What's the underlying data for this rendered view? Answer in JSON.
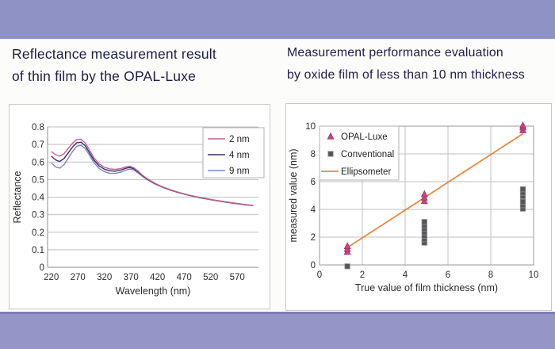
{
  "page": {
    "band_color": "#8f92c5",
    "band_bottom_color": "#9396c7",
    "band_edge_color": "#7d80b4",
    "title_color": "#1c1d45"
  },
  "left_section": {
    "title_line1": "Reflectance measurement result",
    "title_line2": "of thin film by the OPAL-Luxe"
  },
  "right_section": {
    "title_line1": "Measurement performance evaluation",
    "title_line2": "by oxide film of less than 10 nm thickness"
  },
  "chart_data": [
    {
      "type": "line",
      "title": "",
      "xlabel": "Wavelength (nm)",
      "ylabel": "Reflectance",
      "xlim": [
        213,
        610
      ],
      "ylim": [
        0,
        0.8
      ],
      "xticks": [
        220,
        270,
        320,
        370,
        420,
        470,
        520,
        570
      ],
      "yticks": [
        0,
        0.1,
        0.2,
        0.3,
        0.4,
        0.5,
        0.6,
        0.7,
        0.8
      ],
      "grid": "horizontal",
      "gridline_color": "#bfbfbf",
      "axis_color": "#8c8c8c",
      "tick_text_color": "#2b2b2b",
      "legend_position": "top-right",
      "legend_border_color": "#b0b0b0",
      "x": [
        220,
        228,
        236,
        244,
        252,
        260,
        268,
        276,
        284,
        292,
        300,
        310,
        320,
        330,
        340,
        350,
        360,
        368,
        376,
        384,
        392,
        400,
        415,
        430,
        445,
        460,
        480,
        500,
        520,
        540,
        560,
        580,
        600
      ],
      "series": [
        {
          "name": "9 nm",
          "color": "#7487c5",
          "values": [
            0.595,
            0.572,
            0.565,
            0.585,
            0.622,
            0.66,
            0.69,
            0.695,
            0.676,
            0.638,
            0.597,
            0.563,
            0.545,
            0.536,
            0.535,
            0.541,
            0.553,
            0.56,
            0.553,
            0.536,
            0.517,
            0.501,
            0.475,
            0.455,
            0.439,
            0.425,
            0.409,
            0.396,
            0.385,
            0.375,
            0.366,
            0.358,
            0.351
          ]
        },
        {
          "name": "4 nm",
          "color": "#3f2a60",
          "values": [
            0.633,
            0.612,
            0.603,
            0.62,
            0.652,
            0.685,
            0.71,
            0.713,
            0.692,
            0.653,
            0.612,
            0.578,
            0.559,
            0.55,
            0.548,
            0.553,
            0.564,
            0.569,
            0.561,
            0.542,
            0.521,
            0.504,
            0.477,
            0.457,
            0.44,
            0.426,
            0.41,
            0.397,
            0.386,
            0.376,
            0.367,
            0.359,
            0.352
          ]
        },
        {
          "name": "2 nm",
          "color": "#c4608f",
          "values": [
            0.66,
            0.642,
            0.633,
            0.648,
            0.678,
            0.708,
            0.728,
            0.73,
            0.708,
            0.668,
            0.625,
            0.59,
            0.57,
            0.561,
            0.558,
            0.562,
            0.572,
            0.576,
            0.566,
            0.546,
            0.524,
            0.506,
            0.479,
            0.458,
            0.441,
            0.427,
            0.411,
            0.398,
            0.387,
            0.377,
            0.368,
            0.36,
            0.353
          ]
        }
      ],
      "legend_order": [
        "2 nm",
        "4 nm",
        "9 nm"
      ]
    },
    {
      "type": "scatter",
      "title": "",
      "xlabel": "True value of film thickness (nm)",
      "ylabel": "measured value (nm)",
      "xlim": [
        0,
        10
      ],
      "ylim": [
        0,
        10
      ],
      "xticks": [
        0,
        2,
        4,
        6,
        8,
        10
      ],
      "yticks": [
        0,
        2,
        4,
        6,
        8,
        10
      ],
      "grid": "both",
      "gridline_color": "#bfbfbf",
      "axis_color": "#999999",
      "tick_text_color": "#2b2b2b",
      "legend_position": "top-left",
      "legend_border_color": "#b0b0b0",
      "series": [
        {
          "name": "Ellipsometer",
          "marker": "line",
          "color": "#e8883e",
          "line": [
            [
              1.35,
              1.3
            ],
            [
              9.5,
              9.45
            ]
          ]
        },
        {
          "name": "Conventional",
          "marker": "square",
          "color": "#565659",
          "stroke": "#8f8f92",
          "points": [
            [
              1.3,
              -0.1
            ],
            [
              4.9,
              1.6
            ],
            [
              4.9,
              1.85
            ],
            [
              4.9,
              2.1
            ],
            [
              4.9,
              2.35
            ],
            [
              4.9,
              2.6
            ],
            [
              4.9,
              2.85
            ],
            [
              4.9,
              3.1
            ],
            [
              9.5,
              4.05
            ],
            [
              9.5,
              4.3
            ],
            [
              9.5,
              4.55
            ],
            [
              9.5,
              4.95
            ],
            [
              9.5,
              5.2
            ],
            [
              9.5,
              5.45
            ]
          ]
        },
        {
          "name": "OPAL-Luxe",
          "marker": "triangle",
          "color": "#ce4380",
          "stroke": "#9c2f62",
          "points": [
            [
              1.3,
              0.95
            ],
            [
              1.3,
              1.15
            ],
            [
              1.3,
              1.35
            ],
            [
              4.9,
              4.6
            ],
            [
              4.9,
              4.85
            ],
            [
              4.9,
              5.1
            ],
            [
              9.5,
              9.7
            ],
            [
              9.5,
              9.9
            ],
            [
              9.5,
              10.05
            ]
          ]
        }
      ],
      "legend_order": [
        "OPAL-Luxe",
        "Conventional",
        "Ellipsometer"
      ]
    }
  ]
}
